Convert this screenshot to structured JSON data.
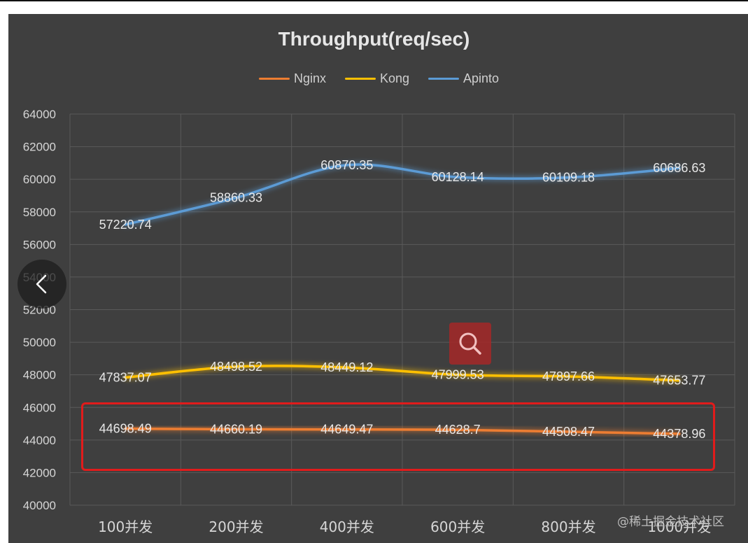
{
  "chart_data": {
    "type": "line",
    "title": "Throughput(req/sec)",
    "categories": [
      "100并发",
      "200并发",
      "400并发",
      "600并发",
      "800并发",
      "1000并发"
    ],
    "ylim": [
      40000,
      64000
    ],
    "yticks": [
      40000,
      42000,
      44000,
      46000,
      48000,
      50000,
      52000,
      54000,
      56000,
      58000,
      60000,
      62000,
      64000
    ],
    "grid": true,
    "legend_position": "top",
    "series": [
      {
        "name": "Nginx",
        "color": "#ed7d31",
        "values": [
          44698.49,
          44660.19,
          44649.47,
          44628.7,
          44508.47,
          44378.96
        ]
      },
      {
        "name": "Kong",
        "color": "#ffc000",
        "values": [
          47837.07,
          48498.52,
          48449.12,
          47999.53,
          47897.66,
          47653.77
        ]
      },
      {
        "name": "Apinto",
        "color": "#5b9bd5",
        "values": [
          57220.74,
          58860.33,
          60870.35,
          60128.14,
          60109.18,
          60686.63
        ]
      }
    ]
  },
  "highlight_color": "#e11b1b",
  "watermark": "@稀土掘金技术社区",
  "controls": {
    "prev_icon": "chevron-left-icon",
    "zoom_icon": "magnifier-icon"
  }
}
